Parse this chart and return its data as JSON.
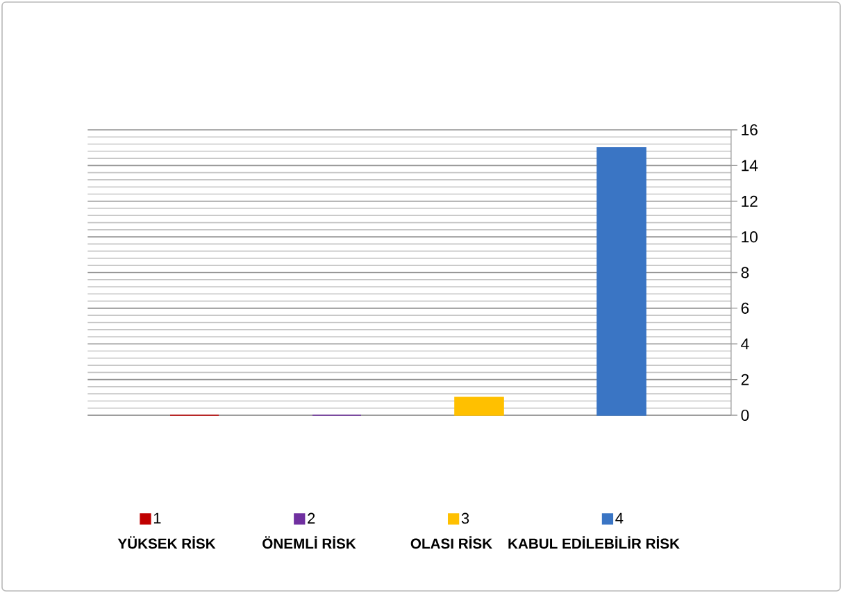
{
  "chart_data": {
    "type": "bar",
    "categories": [
      null,
      null,
      null,
      null
    ],
    "series": [
      {
        "name": "1",
        "color": "#c00000",
        "values": [
          0,
          null,
          null,
          null
        ]
      },
      {
        "name": "2",
        "color": "#7030a0",
        "values": [
          null,
          0,
          null,
          null
        ]
      },
      {
        "name": "3",
        "color": "#ffc000",
        "values": [
          null,
          null,
          1,
          null
        ]
      },
      {
        "name": "4",
        "color": "#3a75c4",
        "values": [
          null,
          null,
          null,
          15
        ]
      }
    ],
    "ylim": [
      0,
      16
    ],
    "yticks": [
      0,
      2,
      4,
      6,
      8,
      10,
      12,
      14,
      16
    ],
    "grid": "y",
    "legend": "bottom",
    "annotations": [
      "YÜKSEK RİSK",
      "ÖNEMLİ RİSK",
      "OLASI RİSK",
      "KABUL EDİLEBİLİR RİSK"
    ]
  }
}
